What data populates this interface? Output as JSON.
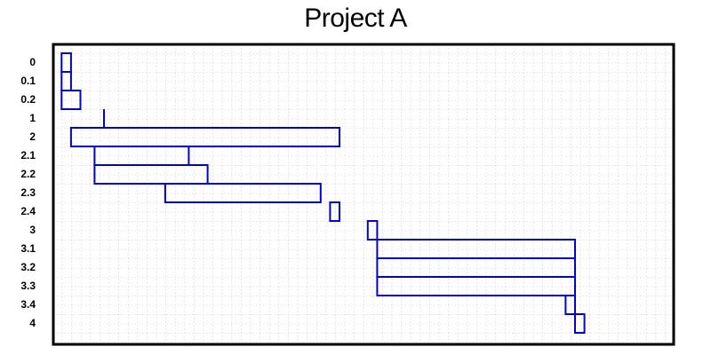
{
  "chart_data": {
    "type": "gantt",
    "title": "Project A",
    "xlabel": "",
    "ylabel": "",
    "grid": true,
    "xlim": [
      0,
      62
    ],
    "bar_color": "#0000cc",
    "tasks": [
      {
        "label": "0",
        "start": 0.5,
        "end": 1.5
      },
      {
        "label": "0.1",
        "start": 0.5,
        "end": 1.5
      },
      {
        "label": "0.2",
        "start": 0.5,
        "end": 2.5
      },
      {
        "label": "1",
        "start": 5,
        "end": 5
      },
      {
        "label": "2",
        "start": 1.5,
        "end": 30
      },
      {
        "label": "2.1",
        "start": 4,
        "end": 14
      },
      {
        "label": "2.2",
        "start": 4,
        "end": 16
      },
      {
        "label": "2.3",
        "start": 11.5,
        "end": 28
      },
      {
        "label": "2.4",
        "start": 29,
        "end": 30
      },
      {
        "label": "3",
        "start": 33,
        "end": 34
      },
      {
        "label": "3.1",
        "start": 34,
        "end": 55
      },
      {
        "label": "3.2",
        "start": 34,
        "end": 55
      },
      {
        "label": "3.3",
        "start": 34,
        "end": 55
      },
      {
        "label": "3.4",
        "start": 54,
        "end": 55
      },
      {
        "label": "4",
        "start": 55,
        "end": 56
      }
    ]
  }
}
